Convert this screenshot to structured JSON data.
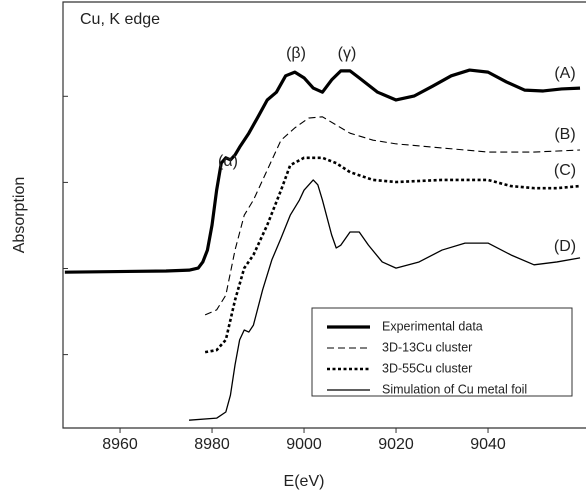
{
  "chart_data": {
    "type": "line",
    "xlabel": "E(eV)",
    "ylabel": "Absorption",
    "xlim": [
      8947.6,
      9061.3
    ],
    "xticks": [
      8960,
      8980,
      9000,
      9020,
      9040
    ],
    "ylim": [
      -3.9,
      100
    ],
    "yticks": [
      14,
      35,
      56,
      77
    ],
    "ytick_labels": false,
    "grid": false,
    "legend": "lower right",
    "annotations": [
      "Cu, K edge",
      "(α)",
      "(β)",
      "(γ)",
      "(A)",
      "(B)",
      "(C)",
      "(D)"
    ],
    "series": [
      {
        "name": "Experimental data",
        "color": "#000000",
        "style": "solid",
        "width": 3.2,
        "x": [
          8948,
          8970,
          8975,
          8977,
          8978,
          8979,
          8980,
          8981,
          8982,
          8983,
          8984,
          8985,
          8986,
          8988,
          8990,
          8992,
          8994,
          8996,
          8998,
          9000,
          9002,
          9004,
          9006,
          9008,
          9010,
          9012,
          9016,
          9020,
          9024,
          9028,
          9032,
          9036,
          9040,
          9044,
          9048,
          9052,
          9056,
          9060
        ],
        "values": [
          34.1,
          34.4,
          34.6,
          35.1,
          36.6,
          39.5,
          45.6,
          54.1,
          60.7,
          62.0,
          61.5,
          62.7,
          64.6,
          68.0,
          72.0,
          76.1,
          78.0,
          82.0,
          82.9,
          81.5,
          79.0,
          78.0,
          81.0,
          83.2,
          83.2,
          81.5,
          78.0,
          76.1,
          77.1,
          79.5,
          82.0,
          83.4,
          82.9,
          80.5,
          78.5,
          78.3,
          78.8,
          79.0
        ]
      },
      {
        "name": "3D-13Cu cluster",
        "color": "#000000",
        "style": "dashed",
        "width": 1.1,
        "x": [
          8978.5,
          8981,
          8983,
          8985,
          8987,
          8989,
          8992,
          8995,
          8998,
          9001,
          9004,
          9007,
          9010,
          9015,
          9020,
          9030,
          9040,
          9050,
          9060
        ],
        "values": [
          23.7,
          24.9,
          28.5,
          39.5,
          48.0,
          51.7,
          59.0,
          66.3,
          69.3,
          71.7,
          72.0,
          70.0,
          68.0,
          66.3,
          65.4,
          64.4,
          63.4,
          63.4,
          63.9
        ]
      },
      {
        "name": "3D-55Cu  cluster",
        "color": "#000000",
        "style": "dotted",
        "width": 2.6,
        "x": [
          8978.5,
          8981,
          8983,
          8985,
          8987,
          8989,
          8992,
          8995,
          8997,
          9000,
          9004,
          9007,
          9010,
          9015,
          9020,
          9030,
          9040,
          9045,
          9050,
          9055,
          9060
        ],
        "values": [
          14.6,
          15.1,
          17.6,
          27.3,
          35.1,
          38.3,
          45.6,
          54.1,
          60.2,
          62.0,
          62.0,
          60.7,
          58.5,
          56.6,
          56.1,
          56.6,
          56.6,
          55.1,
          54.6,
          54.6,
          55.1
        ]
      },
      {
        "name": "Simulation of Cu metal foil",
        "color": "#000000",
        "style": "solid",
        "width": 1.3,
        "x": [
          8975,
          8981,
          8983,
          8984,
          8985,
          8986,
          8987,
          8988,
          8989,
          8991,
          8993,
          8995,
          8997,
          8999,
          9000,
          9002,
          9003,
          9004,
          9006,
          9007,
          9008,
          9010,
          9012,
          9014,
          9017,
          9020,
          9025,
          9030,
          9035,
          9040,
          9045,
          9050,
          9055,
          9060
        ],
        "values": [
          -2.0,
          -1.5,
          0,
          4.1,
          11.5,
          17.6,
          20.0,
          19.5,
          21.2,
          29.8,
          37.1,
          42.4,
          48.0,
          51.7,
          54.1,
          56.6,
          55.4,
          51.7,
          43.2,
          40.0,
          40.7,
          43.9,
          43.9,
          40.7,
          36.6,
          35.1,
          36.6,
          39.5,
          41.2,
          41.2,
          38.3,
          35.9,
          36.6,
          37.6
        ]
      }
    ]
  }
}
